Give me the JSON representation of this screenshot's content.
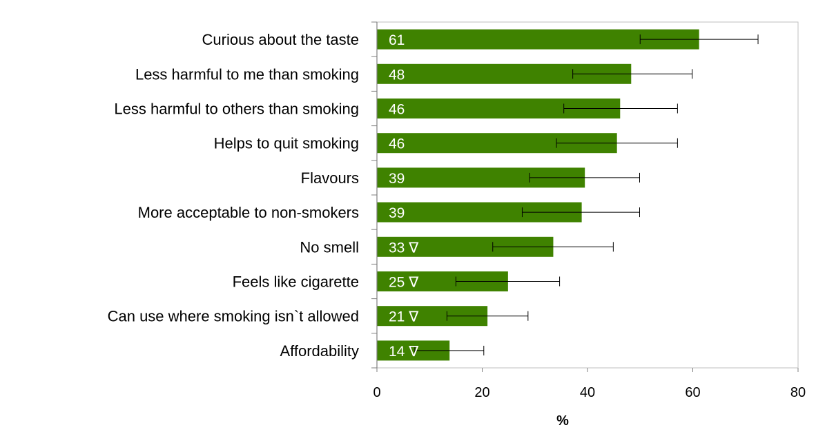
{
  "chart_data": {
    "type": "bar",
    "orientation": "horizontal",
    "categories": [
      "Curious about the taste",
      "Less harmful to me than smoking",
      "Less harmful to others than smoking",
      "Helps to quit smoking",
      "Flavours",
      "More acceptable to non-smokers",
      "No smell",
      "Feels like cigarette",
      "Can use where smoking isn`t allowed",
      "Affordability"
    ],
    "values": [
      61.2,
      48.3,
      46.2,
      45.6,
      39.5,
      38.9,
      33.5,
      24.9,
      21.0,
      13.8
    ],
    "error_low": [
      50.0,
      37.2,
      35.5,
      34.1,
      29.0,
      27.6,
      22.0,
      15.0,
      13.3,
      7.2
    ],
    "error_high": [
      72.4,
      59.9,
      57.1,
      57.1,
      49.9,
      49.9,
      44.9,
      34.7,
      28.7,
      20.3
    ],
    "data_labels": [
      "61",
      "48",
      "46",
      "46",
      "39",
      "39",
      "33 ∇",
      "25 ∇",
      "21 ∇",
      "14 ∇"
    ],
    "xlabel": "%",
    "ylabel": "",
    "xlim": [
      0,
      80
    ],
    "xticks": [
      0,
      20,
      40,
      60,
      80
    ],
    "grid": false,
    "colors": {
      "bar": "#3f8200",
      "error": "#000000",
      "axis": "#7f7f7f",
      "frame": "#bfbfbf"
    }
  }
}
